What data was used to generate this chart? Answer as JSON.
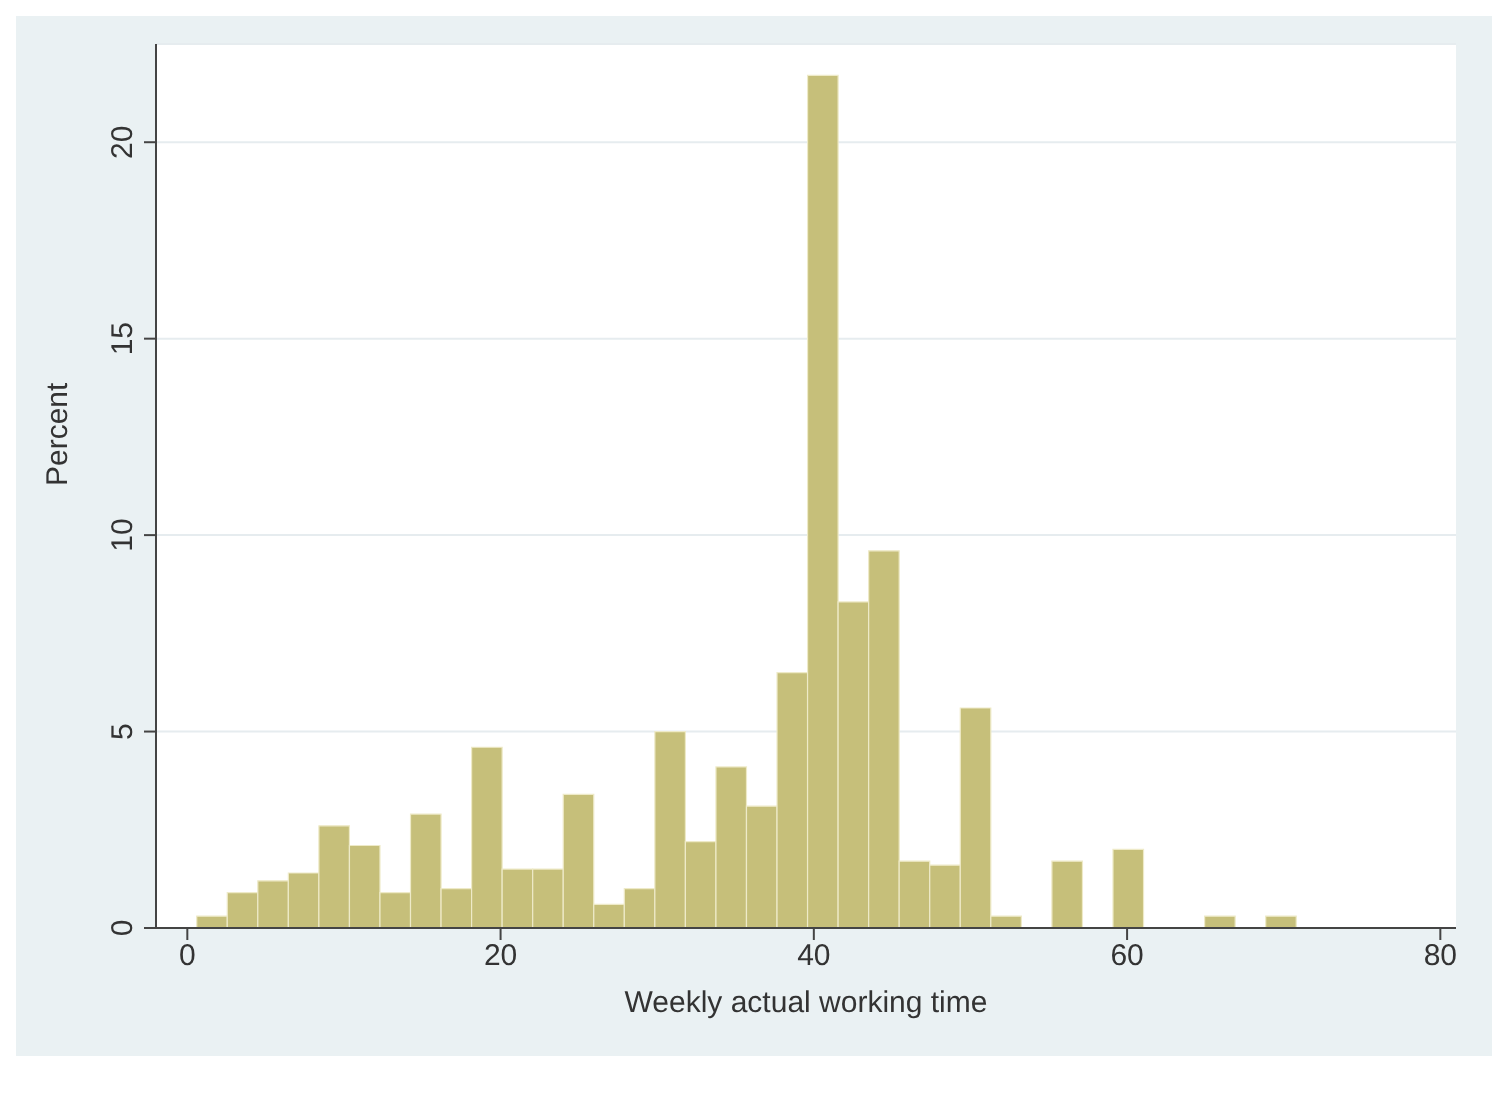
{
  "chart_data": {
    "type": "histogram",
    "xlabel": "Weekly actual working time",
    "ylabel": "Percent",
    "bins": [
      0.6,
      2.55,
      4.5,
      6.45,
      8.4,
      10.35,
      12.3,
      14.25,
      16.2,
      18.15,
      20.1,
      22.05,
      24,
      25.95,
      27.9,
      29.85,
      31.8,
      33.75,
      35.7,
      37.65,
      39.6,
      41.55,
      43.5,
      45.45,
      47.4,
      49.35,
      51.3,
      53.25,
      55.2,
      57.15,
      59.1,
      61.05,
      63,
      64.95,
      66.9,
      68.85,
      70.8
    ],
    "values": [
      0.3,
      0.9,
      1.2,
      1.4,
      2.6,
      2.1,
      0.9,
      2.9,
      1.0,
      4.6,
      1.5,
      1.5,
      3.4,
      0.6,
      1.0,
      5.0,
      2.2,
      4.1,
      3.1,
      6.5,
      21.7,
      8.3,
      9.6,
      1.7,
      1.6,
      5.6,
      0.3,
      0,
      1.7,
      0,
      2.0,
      0,
      0,
      0.3,
      0,
      0.3
    ],
    "color": "#c6bf7a",
    "xlim": [
      -2,
      81
    ],
    "xticks": [
      0,
      20,
      40,
      60,
      80
    ],
    "ylim": [
      0,
      22.5
    ],
    "yticks": [
      0,
      5,
      10,
      15,
      20
    ],
    "grid": "y"
  }
}
